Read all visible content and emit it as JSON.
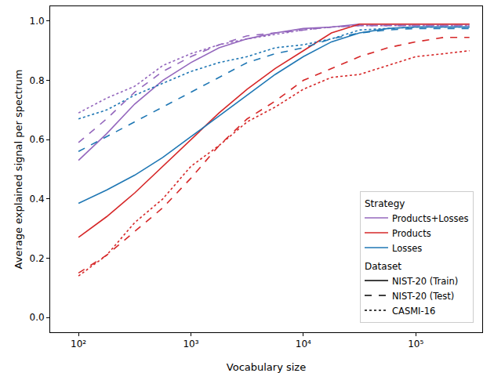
{
  "chart_data": {
    "type": "line",
    "x_label": "Vocabulary size",
    "y_label": "Average explained signal per spectrum",
    "log": "x",
    "grid": false,
    "legend": "lower right",
    "xlim": [
      56,
      390000
    ],
    "ylim": [
      -0.05,
      1.05
    ],
    "xticks": [
      {
        "value": 100,
        "label": "10²"
      },
      {
        "value": 1000,
        "label": "10³"
      },
      {
        "value": 10000,
        "label": "10⁴"
      },
      {
        "value": 100000,
        "label": "10⁵"
      }
    ],
    "yticks": [
      {
        "value": 0,
        "label": "0.0"
      },
      0.2,
      0.4,
      0.6,
      0.8,
      {
        "value": 1,
        "label": "1.0"
      }
    ],
    "legend_groups": [
      {
        "title": "Strategy",
        "items": [
          {
            "name": "Products+Losses",
            "color": "#9467bd",
            "line_style": "solid"
          },
          {
            "name": "Products",
            "color": "#d62728",
            "line_style": "solid"
          },
          {
            "name": "Losses",
            "color": "#1f77b4",
            "line_style": "solid"
          }
        ]
      },
      {
        "title": "Dataset",
        "items": [
          {
            "name": "NIST-20 (Train)",
            "color": "#000000",
            "line_style": "solid"
          },
          {
            "name": "NIST-20 (Test)",
            "color": "#000000",
            "line_style": "dash"
          },
          {
            "name": "CASMI-16",
            "color": "#000000",
            "line_style": "dot"
          }
        ]
      }
    ],
    "x": [
      100,
      178,
      316,
      562,
      1000,
      1778,
      3162,
      5623,
      10000,
      17783,
      31623,
      56234,
      100000,
      177828,
      300000
    ],
    "series": [
      {
        "strategy": "Products+Losses",
        "dataset": "NIST-20 (Train)",
        "color": "#9467bd",
        "line_style": "solid",
        "values": [
          0.53,
          0.62,
          0.72,
          0.8,
          0.86,
          0.91,
          0.94,
          0.96,
          0.975,
          0.98,
          0.99,
          0.99,
          0.99,
          0.99,
          0.99
        ]
      },
      {
        "strategy": "Products+Losses",
        "dataset": "NIST-20 (Test)",
        "color": "#9467bd",
        "line_style": "dash",
        "values": [
          0.59,
          0.67,
          0.76,
          0.83,
          0.88,
          0.92,
          0.95,
          0.96,
          0.97,
          0.98,
          0.985,
          0.985,
          0.985,
          0.985,
          0.985
        ]
      },
      {
        "strategy": "Products+Losses",
        "dataset": "CASMI-16",
        "color": "#9467bd",
        "line_style": "dot",
        "values": [
          0.69,
          0.74,
          0.78,
          0.85,
          0.89,
          0.92,
          0.94,
          0.955,
          0.97,
          0.98,
          0.985,
          0.985,
          0.985,
          0.985,
          0.985
        ]
      },
      {
        "strategy": "Products",
        "dataset": "NIST-20 (Train)",
        "color": "#d62728",
        "line_style": "solid",
        "values": [
          0.27,
          0.34,
          0.42,
          0.51,
          0.6,
          0.69,
          0.77,
          0.84,
          0.9,
          0.96,
          0.99,
          0.99,
          0.99,
          0.99,
          0.99
        ]
      },
      {
        "strategy": "Products",
        "dataset": "NIST-20 (Test)",
        "color": "#d62728",
        "line_style": "dash",
        "values": [
          0.15,
          0.21,
          0.29,
          0.37,
          0.47,
          0.58,
          0.67,
          0.73,
          0.8,
          0.84,
          0.88,
          0.91,
          0.93,
          0.945,
          0.945
        ]
      },
      {
        "strategy": "Products",
        "dataset": "CASMI-16",
        "color": "#d62728",
        "line_style": "dot",
        "values": [
          0.14,
          0.21,
          0.32,
          0.4,
          0.51,
          0.58,
          0.66,
          0.71,
          0.77,
          0.81,
          0.82,
          0.85,
          0.88,
          0.89,
          0.9
        ]
      },
      {
        "strategy": "Losses",
        "dataset": "NIST-20 (Train)",
        "color": "#1f77b4",
        "line_style": "solid",
        "values": [
          0.385,
          0.43,
          0.48,
          0.54,
          0.61,
          0.68,
          0.75,
          0.82,
          0.88,
          0.93,
          0.96,
          0.975,
          0.98,
          0.98,
          0.98
        ]
      },
      {
        "strategy": "Losses",
        "dataset": "NIST-20 (Test)",
        "color": "#1f77b4",
        "line_style": "dash",
        "values": [
          0.56,
          0.61,
          0.66,
          0.71,
          0.76,
          0.81,
          0.86,
          0.89,
          0.91,
          0.94,
          0.96,
          0.97,
          0.975,
          0.975,
          0.975
        ]
      },
      {
        "strategy": "Losses",
        "dataset": "CASMI-16",
        "color": "#1f77b4",
        "line_style": "dot",
        "values": [
          0.67,
          0.7,
          0.75,
          0.79,
          0.83,
          0.86,
          0.88,
          0.91,
          0.92,
          0.94,
          0.97,
          0.975,
          0.98,
          0.98,
          0.98
        ]
      }
    ]
  }
}
